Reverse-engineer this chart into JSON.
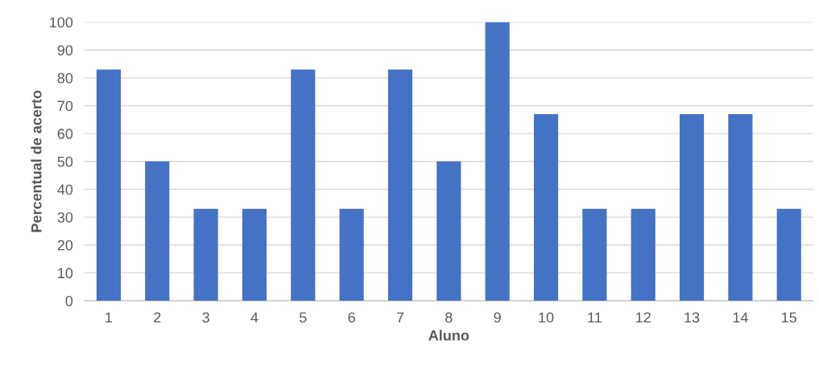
{
  "chart_data": {
    "type": "bar",
    "xlabel": "Aluno",
    "ylabel": "Percentual de acerto",
    "categories": [
      "1",
      "2",
      "3",
      "4",
      "5",
      "6",
      "7",
      "8",
      "9",
      "10",
      "11",
      "12",
      "13",
      "14",
      "15"
    ],
    "values": [
      83,
      50,
      33,
      33,
      83,
      33,
      83,
      50,
      100,
      67,
      33,
      33,
      67,
      67,
      33
    ],
    "color": "#4472c4",
    "ylim": [
      0,
      100
    ],
    "yticks": [
      0,
      10,
      20,
      30,
      40,
      50,
      60,
      70,
      80,
      90,
      100
    ],
    "grid": "y"
  }
}
